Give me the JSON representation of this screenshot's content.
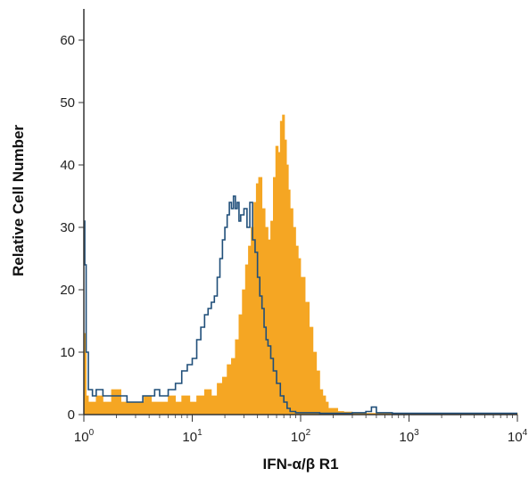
{
  "chart_data": {
    "type": "histogram",
    "title": "",
    "xlabel": "IFN-α/β R1",
    "ylabel": "Relative Cell Number",
    "xscale": "log",
    "xlim": [
      1,
      10000
    ],
    "ylim": [
      0,
      65
    ],
    "x_ticks": [
      {
        "value": 1,
        "base": "10",
        "exp": "0"
      },
      {
        "value": 10,
        "base": "10",
        "exp": "1"
      },
      {
        "value": 100,
        "base": "10",
        "exp": "2"
      },
      {
        "value": 1000,
        "base": "10",
        "exp": "3"
      },
      {
        "value": 10000,
        "base": "10",
        "exp": "4"
      }
    ],
    "y_ticks": [
      0,
      10,
      20,
      30,
      40,
      50,
      60
    ],
    "legend": "none",
    "grid": false,
    "series": [
      {
        "style": "filled",
        "color": "#f5a623",
        "x": [
          1.0,
          1.05,
          1.1,
          1.2,
          1.3,
          1.5,
          1.8,
          2.2,
          2.6,
          3.0,
          3.6,
          4.2,
          5.0,
          6.0,
          7.0,
          8.0,
          9.5,
          11,
          13,
          15,
          17,
          19,
          21,
          23,
          25,
          27,
          29,
          31,
          33,
          35,
          37,
          39,
          41,
          44,
          47,
          50,
          53,
          56,
          59,
          62,
          65,
          68,
          71,
          74,
          77,
          80,
          85,
          90,
          95,
          100,
          110,
          120,
          130,
          140,
          150,
          160,
          170,
          180,
          200,
          220,
          250,
          300,
          400,
          500,
          10000
        ],
        "y": [
          13,
          3,
          2,
          2,
          3,
          2,
          4,
          2,
          2,
          2,
          3,
          2,
          2,
          3,
          2,
          3,
          2,
          3,
          4,
          3,
          5,
          6,
          8,
          9,
          12,
          16,
          20,
          24,
          27,
          30,
          34,
          37,
          38,
          33,
          30,
          28,
          31,
          38,
          43,
          42,
          47,
          48,
          44,
          40,
          36,
          33,
          30,
          27,
          25,
          22,
          18,
          14,
          10,
          7,
          4,
          3,
          2,
          1,
          1,
          0.5,
          0.4,
          0.3,
          0.2,
          0.2,
          0.2
        ]
      },
      {
        "style": "outline",
        "color": "#1f4e79",
        "x": [
          1.0,
          1.02,
          1.05,
          1.1,
          1.2,
          1.3,
          1.5,
          2.0,
          2.5,
          3.0,
          3.5,
          4.0,
          4.5,
          5.0,
          5.5,
          6.0,
          7.0,
          8.0,
          9.0,
          10.0,
          11,
          12,
          13,
          14,
          15,
          16,
          17,
          18,
          19,
          20,
          21,
          22,
          23,
          24,
          25,
          26,
          27,
          28,
          30,
          32,
          34,
          36,
          38,
          40,
          42,
          44,
          46,
          48,
          50,
          53,
          56,
          60,
          65,
          70,
          75,
          80,
          90,
          100,
          150,
          200,
          300,
          400,
          450,
          500,
          700,
          1000,
          10000
        ],
        "y": [
          31,
          24,
          10,
          4,
          3,
          4,
          3,
          3,
          2,
          2,
          3,
          3,
          4,
          3,
          3,
          4,
          5,
          7,
          8,
          9,
          12,
          14,
          16,
          17,
          18,
          19,
          22,
          25,
          28,
          30,
          32,
          34,
          33,
          35,
          33,
          34,
          31,
          32,
          33,
          30,
          34,
          28,
          26,
          22,
          19,
          17,
          14,
          12,
          11,
          9,
          7,
          5,
          3,
          2,
          1,
          0.5,
          0.3,
          0.3,
          0.2,
          0.2,
          0.3,
          0.5,
          1.2,
          0.3,
          0.2,
          0.2,
          0.2
        ]
      }
    ]
  }
}
